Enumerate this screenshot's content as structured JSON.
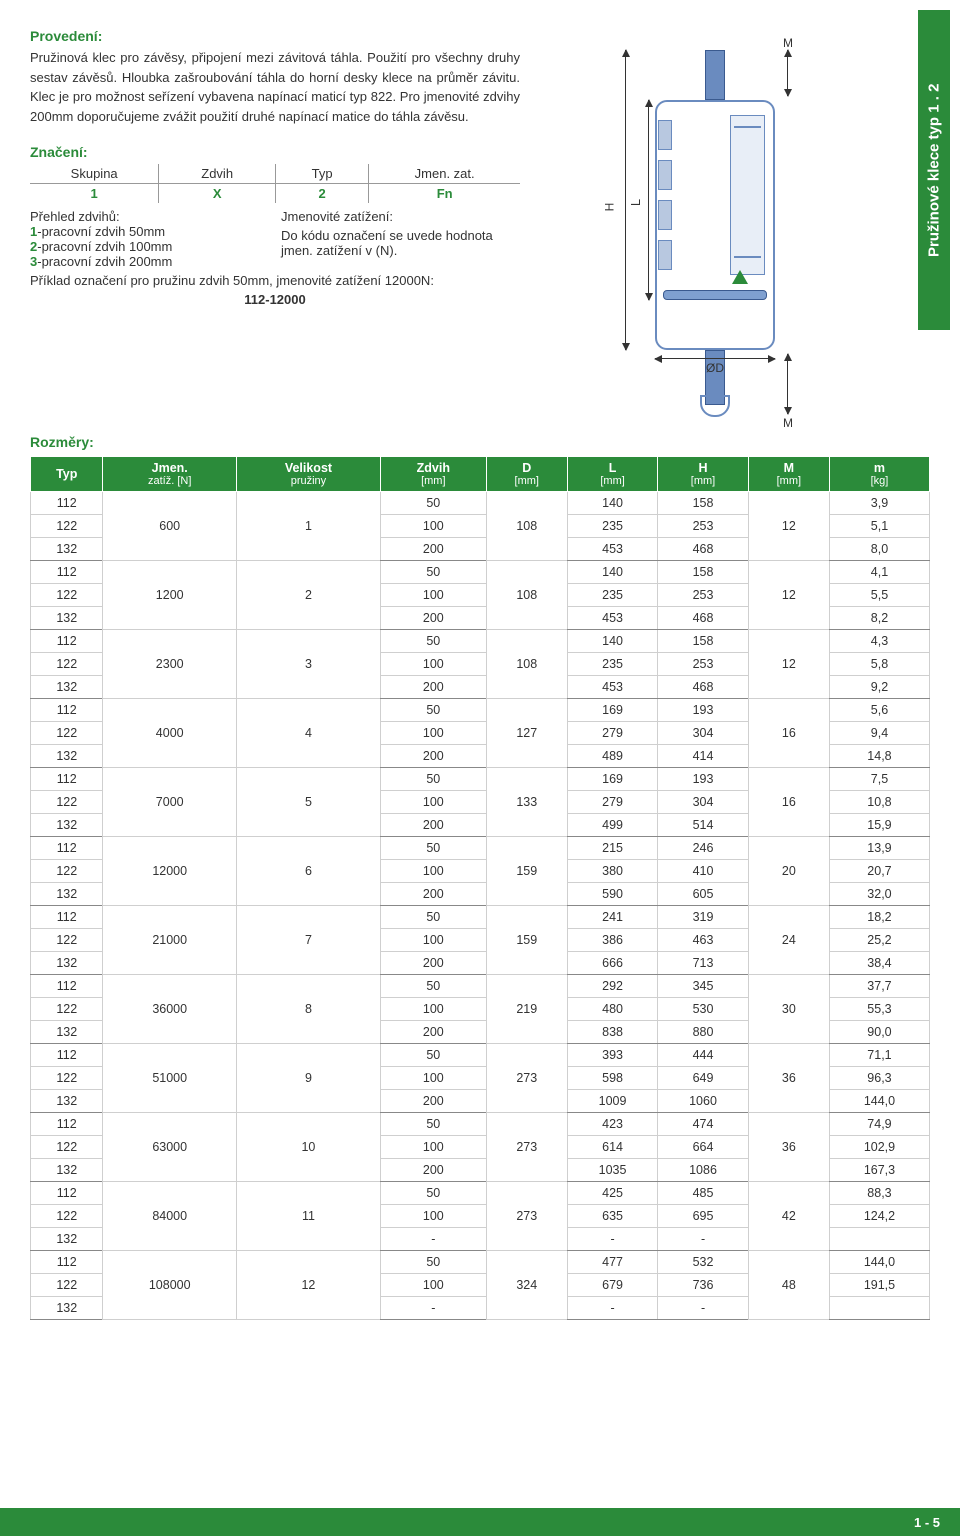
{
  "sidebar_label": "Pružinové klece typ 1 . 2",
  "sections": {
    "provedeni_title": "Provedení:",
    "provedeni_text": "Pružinová klec pro závěsy, připojení mezi závitová táhla. Použití pro všechny druhy sestav závěsů. Hloubka zašroubování táhla do horní desky klece na průměr závitu. Klec je pro možnost seřízení vybavena napínací maticí typ 822. Pro jmenovité zdvihy 200mm doporučujeme zvážit použití druhé napínací matice do táhla závěsu.",
    "znaceni_title": "Značení:",
    "rozmery_title": "Rozměry:"
  },
  "marking": {
    "headers": [
      "Skupina",
      "Zdvih",
      "Typ",
      "Jmen. zat."
    ],
    "values": [
      "1",
      "X",
      "2",
      "Fn"
    ]
  },
  "overview": {
    "left_title": "Přehled zdvihů:",
    "left_items": [
      {
        "n": "1",
        "t": "-pracovní zdvih 50mm"
      },
      {
        "n": "2",
        "t": "-pracovní zdvih 100mm"
      },
      {
        "n": "3",
        "t": "-pracovní zdvih 200mm"
      }
    ],
    "right_title": "Jmenovité zatížení:",
    "right_text": "Do kódu označení se uvede hodnota jmen. zatížení v (N).",
    "example_line": "Příklad označení pro pružinu zdvih 50mm, jmenovité zatížení 12000N:",
    "example_code": "112-12000"
  },
  "diagram": {
    "H": "H",
    "L": "L",
    "D": "ØD",
    "M": "M"
  },
  "table": {
    "headers": [
      {
        "t": "Typ",
        "s": ""
      },
      {
        "t": "Jmen.",
        "s": "zatíž. [N]"
      },
      {
        "t": "Velikost",
        "s": "pružiny"
      },
      {
        "t": "Zdvih",
        "s": "[mm]"
      },
      {
        "t": "D",
        "s": "[mm]"
      },
      {
        "t": "L",
        "s": "[mm]"
      },
      {
        "t": "H",
        "s": "[mm]"
      },
      {
        "t": "M",
        "s": "[mm]"
      },
      {
        "t": "m",
        "s": "[kg]"
      }
    ],
    "groups": [
      {
        "jmen": "600",
        "vel": "1",
        "D": "108",
        "M": "12",
        "rows": [
          {
            "typ": "112",
            "z": "50",
            "L": "140",
            "H": "158",
            "m": "3,9"
          },
          {
            "typ": "122",
            "z": "100",
            "L": "235",
            "H": "253",
            "m": "5,1"
          },
          {
            "typ": "132",
            "z": "200",
            "L": "453",
            "H": "468",
            "m": "8,0"
          }
        ]
      },
      {
        "jmen": "1200",
        "vel": "2",
        "D": "108",
        "M": "12",
        "rows": [
          {
            "typ": "112",
            "z": "50",
            "L": "140",
            "H": "158",
            "m": "4,1"
          },
          {
            "typ": "122",
            "z": "100",
            "L": "235",
            "H": "253",
            "m": "5,5"
          },
          {
            "typ": "132",
            "z": "200",
            "L": "453",
            "H": "468",
            "m": "8,2"
          }
        ]
      },
      {
        "jmen": "2300",
        "vel": "3",
        "D": "108",
        "M": "12",
        "rows": [
          {
            "typ": "112",
            "z": "50",
            "L": "140",
            "H": "158",
            "m": "4,3"
          },
          {
            "typ": "122",
            "z": "100",
            "L": "235",
            "H": "253",
            "m": "5,8"
          },
          {
            "typ": "132",
            "z": "200",
            "L": "453",
            "H": "468",
            "m": "9,2"
          }
        ]
      },
      {
        "jmen": "4000",
        "vel": "4",
        "D": "127",
        "M": "16",
        "rows": [
          {
            "typ": "112",
            "z": "50",
            "L": "169",
            "H": "193",
            "m": "5,6"
          },
          {
            "typ": "122",
            "z": "100",
            "L": "279",
            "H": "304",
            "m": "9,4"
          },
          {
            "typ": "132",
            "z": "200",
            "L": "489",
            "H": "414",
            "m": "14,8"
          }
        ]
      },
      {
        "jmen": "7000",
        "vel": "5",
        "D": "133",
        "M": "16",
        "rows": [
          {
            "typ": "112",
            "z": "50",
            "L": "169",
            "H": "193",
            "m": "7,5"
          },
          {
            "typ": "122",
            "z": "100",
            "L": "279",
            "H": "304",
            "m": "10,8"
          },
          {
            "typ": "132",
            "z": "200",
            "L": "499",
            "H": "514",
            "m": "15,9"
          }
        ]
      },
      {
        "jmen": "12000",
        "vel": "6",
        "D": "159",
        "M": "20",
        "rows": [
          {
            "typ": "112",
            "z": "50",
            "L": "215",
            "H": "246",
            "m": "13,9"
          },
          {
            "typ": "122",
            "z": "100",
            "L": "380",
            "H": "410",
            "m": "20,7"
          },
          {
            "typ": "132",
            "z": "200",
            "L": "590",
            "H": "605",
            "m": "32,0"
          }
        ]
      },
      {
        "jmen": "21000",
        "vel": "7",
        "D": "159",
        "M": "24",
        "rows": [
          {
            "typ": "112",
            "z": "50",
            "L": "241",
            "H": "319",
            "m": "18,2"
          },
          {
            "typ": "122",
            "z": "100",
            "L": "386",
            "H": "463",
            "m": "25,2"
          },
          {
            "typ": "132",
            "z": "200",
            "L": "666",
            "H": "713",
            "m": "38,4"
          }
        ]
      },
      {
        "jmen": "36000",
        "vel": "8",
        "D": "219",
        "M": "30",
        "rows": [
          {
            "typ": "112",
            "z": "50",
            "L": "292",
            "H": "345",
            "m": "37,7"
          },
          {
            "typ": "122",
            "z": "100",
            "L": "480",
            "H": "530",
            "m": "55,3"
          },
          {
            "typ": "132",
            "z": "200",
            "L": "838",
            "H": "880",
            "m": "90,0"
          }
        ]
      },
      {
        "jmen": "51000",
        "vel": "9",
        "D": "273",
        "M": "36",
        "rows": [
          {
            "typ": "112",
            "z": "50",
            "L": "393",
            "H": "444",
            "m": "71,1"
          },
          {
            "typ": "122",
            "z": "100",
            "L": "598",
            "H": "649",
            "m": "96,3"
          },
          {
            "typ": "132",
            "z": "200",
            "L": "1009",
            "H": "1060",
            "m": "144,0"
          }
        ]
      },
      {
        "jmen": "63000",
        "vel": "10",
        "D": "273",
        "M": "36",
        "rows": [
          {
            "typ": "112",
            "z": "50",
            "L": "423",
            "H": "474",
            "m": "74,9"
          },
          {
            "typ": "122",
            "z": "100",
            "L": "614",
            "H": "664",
            "m": "102,9"
          },
          {
            "typ": "132",
            "z": "200",
            "L": "1035",
            "H": "1086",
            "m": "167,3"
          }
        ]
      },
      {
        "jmen": "84000",
        "vel": "11",
        "D": "273",
        "M": "42",
        "rows": [
          {
            "typ": "112",
            "z": "50",
            "L": "425",
            "H": "485",
            "m": "88,3"
          },
          {
            "typ": "122",
            "z": "100",
            "L": "635",
            "H": "695",
            "m": "124,2"
          },
          {
            "typ": "132",
            "z": "-",
            "L": "-",
            "H": "-",
            "m": ""
          }
        ]
      },
      {
        "jmen": "108000",
        "vel": "12",
        "D": "324",
        "M": "48",
        "rows": [
          {
            "typ": "112",
            "z": "50",
            "L": "477",
            "H": "532",
            "m": "144,0"
          },
          {
            "typ": "122",
            "z": "100",
            "L": "679",
            "H": "736",
            "m": "191,5"
          },
          {
            "typ": "132",
            "z": "-",
            "L": "-",
            "H": "-",
            "m": ""
          }
        ]
      }
    ]
  },
  "footer": "1 - 5"
}
